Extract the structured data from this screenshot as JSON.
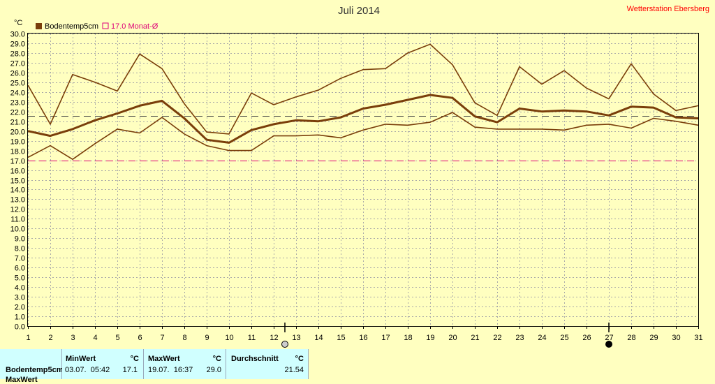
{
  "header": {
    "title": "Juli 2014",
    "station": "Wetterstation Ebersberg"
  },
  "legend": {
    "series_label": "Bodentemp5cm",
    "monthly_label": "17.0 Monat-Ø",
    "series_color": "#7a3e0a",
    "monthly_color": "#dd0077"
  },
  "chart_data": {
    "type": "line",
    "title": "Juli 2014",
    "ylabel": "°C",
    "xlabel": "",
    "ylim": [
      0,
      30
    ],
    "y_step": 1,
    "x": [
      1,
      2,
      3,
      4,
      5,
      6,
      7,
      8,
      9,
      10,
      11,
      12,
      13,
      14,
      15,
      16,
      17,
      18,
      19,
      20,
      21,
      22,
      23,
      24,
      25,
      26,
      27,
      28,
      29,
      30,
      31
    ],
    "xlim": [
      1,
      31
    ],
    "series": [
      {
        "name": "Bodentemp5cm",
        "role": "max",
        "values": [
          24.7,
          20.7,
          25.8,
          25.0,
          24.1,
          27.9,
          26.4,
          22.8,
          19.9,
          19.7,
          23.9,
          22.7,
          23.5,
          24.2,
          25.4,
          26.3,
          26.4,
          28.0,
          28.9,
          26.8,
          22.9,
          21.6,
          26.6,
          24.8,
          26.2,
          24.4,
          23.3,
          26.9,
          23.8,
          22.1,
          22.6
        ]
      },
      {
        "name": "Bodentemp5cm",
        "role": "mean",
        "values": [
          20.0,
          19.5,
          20.2,
          21.1,
          21.8,
          22.6,
          23.1,
          21.3,
          19.1,
          18.8,
          20.1,
          20.7,
          21.1,
          21.0,
          21.4,
          22.3,
          22.7,
          23.2,
          23.7,
          23.4,
          21.5,
          20.9,
          22.3,
          22.0,
          22.1,
          22.0,
          21.6,
          22.5,
          22.4,
          21.4,
          21.3
        ]
      },
      {
        "name": "Bodentemp5cm",
        "role": "min",
        "values": [
          17.3,
          18.5,
          17.1,
          18.7,
          20.2,
          19.8,
          21.4,
          19.7,
          18.5,
          18.0,
          18.0,
          19.5,
          19.5,
          19.6,
          19.3,
          20.1,
          20.7,
          20.6,
          20.9,
          21.9,
          20.4,
          20.2,
          20.2,
          20.2,
          20.1,
          20.6,
          20.7,
          20.3,
          21.3,
          21.0,
          20.6
        ]
      }
    ],
    "reference_lines": [
      {
        "name": "17.0 Monat-Ø",
        "value": 17.0,
        "color": "#dd0077"
      },
      {
        "name": "average",
        "value": 21.54,
        "color": "#444444"
      }
    ],
    "moon_markers": [
      {
        "day": 12.5,
        "phase": "full"
      },
      {
        "day": 27,
        "phase": "new"
      }
    ],
    "grid": true
  },
  "stats": {
    "row_label": "Bodentemp5cm",
    "row2_label": "MaxWert",
    "min_header": "MinWert",
    "max_header": "MaxWert",
    "avg_header": "Durchschnitt",
    "unit": "°C",
    "min_time": "03.07.  05:42",
    "min_value": "17.1",
    "max_time": "19.07.  16:37",
    "max_value": "29.0",
    "avg_value": "21.54"
  }
}
